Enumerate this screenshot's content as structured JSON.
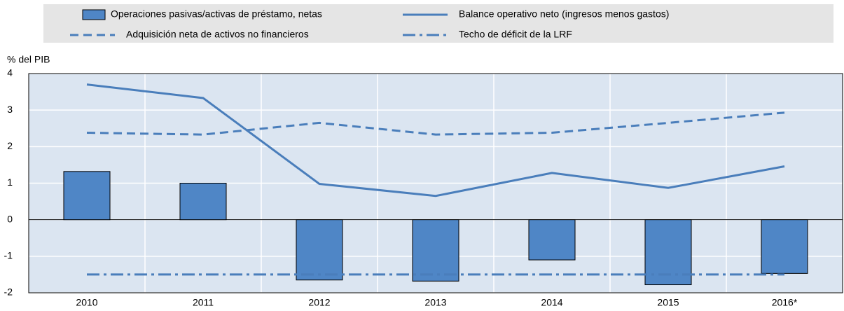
{
  "chart_data": {
    "type": "bar",
    "y_label": "% del PIB",
    "categories": [
      "2010",
      "2011",
      "2012",
      "2013",
      "2014",
      "2015",
      "2016*"
    ],
    "series": [
      {
        "name": "Operaciones pasivas/activas de préstamo, netas",
        "type": "bar",
        "color": "#4f86c6",
        "values": [
          1.32,
          1.0,
          -1.65,
          -1.68,
          -1.1,
          -1.78,
          -1.47
        ]
      },
      {
        "name": "Adquisición neta de activos no financieros",
        "type": "line",
        "style": "dashed",
        "color": "#4a7ebb",
        "values": [
          2.38,
          2.33,
          2.65,
          2.33,
          2.38,
          2.65,
          2.93
        ]
      },
      {
        "name": "Balance operativo neto (ingresos menos gastos)",
        "type": "line",
        "style": "solid",
        "color": "#4a7ebb",
        "values": [
          3.7,
          3.33,
          0.98,
          0.65,
          1.28,
          0.87,
          1.46
        ]
      },
      {
        "name": "Techo de déficit de la LRF",
        "type": "line",
        "style": "dashdot",
        "color": "#4a7ebb",
        "values": [
          -1.5,
          -1.5,
          -1.5,
          -1.5,
          -1.5,
          -1.5,
          -1.5
        ]
      }
    ],
    "ylim": [
      -2,
      4
    ],
    "yticks": [
      -2,
      -1,
      0,
      1,
      2,
      3,
      4
    ],
    "grid": true
  }
}
